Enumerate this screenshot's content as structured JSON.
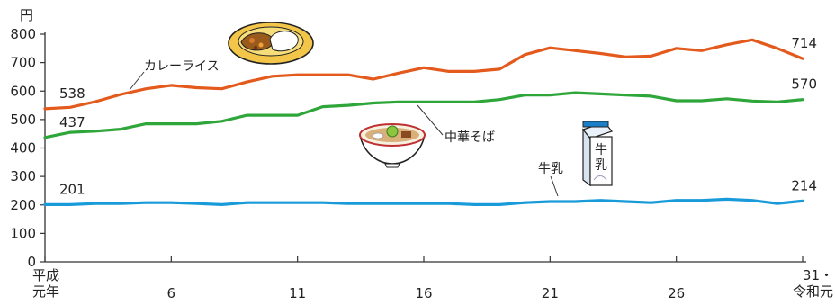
{
  "chart_data": {
    "type": "line",
    "ylabel": "円",
    "ylim": [
      0,
      800
    ],
    "yticks": [
      0,
      100,
      200,
      300,
      400,
      500,
      600,
      700,
      800
    ],
    "x": [
      1,
      2,
      3,
      4,
      5,
      6,
      7,
      8,
      9,
      10,
      11,
      12,
      13,
      14,
      15,
      16,
      17,
      18,
      19,
      20,
      21,
      22,
      23,
      24,
      25,
      26,
      27,
      28,
      29,
      30,
      31
    ],
    "xticks": [
      {
        "x": 1,
        "lines": [
          "平成",
          "元年"
        ]
      },
      {
        "x": 6,
        "lines": [
          "6"
        ]
      },
      {
        "x": 11,
        "lines": [
          "11"
        ]
      },
      {
        "x": 16,
        "lines": [
          "16"
        ]
      },
      {
        "x": 21,
        "lines": [
          "21"
        ]
      },
      {
        "x": 26,
        "lines": [
          "26"
        ]
      },
      {
        "x": 31,
        "lines": [
          "31・",
          "令和元"
        ]
      }
    ],
    "grid": false,
    "series": [
      {
        "name": "カレーライス",
        "color": "#e35a1c",
        "icon": "curry-icon",
        "start_label": "538",
        "end_label": "714",
        "values": [
          538,
          543,
          563,
          588,
          608,
          620,
          612,
          608,
          632,
          652,
          657,
          657,
          657,
          642,
          663,
          682,
          669,
          669,
          677,
          728,
          752,
          742,
          732,
          720,
          723,
          750,
          742,
          763,
          780,
          750,
          714
        ]
      },
      {
        "name": "中華そば",
        "color": "#2fa63a",
        "icon": "ramen-icon",
        "start_label": "437",
        "end_label": "570",
        "values": [
          437,
          455,
          459,
          466,
          485,
          485,
          485,
          494,
          515,
          515,
          515,
          545,
          550,
          558,
          562,
          562,
          562,
          562,
          570,
          586,
          586,
          594,
          590,
          586,
          582,
          566,
          566,
          573,
          565,
          562,
          570
        ]
      },
      {
        "name": "牛乳",
        "color": "#1a9bd9",
        "icon": "milk-icon",
        "start_label": "201",
        "end_label": "214",
        "values": [
          201,
          201,
          205,
          205,
          208,
          208,
          205,
          201,
          208,
          208,
          208,
          208,
          205,
          205,
          205,
          205,
          205,
          201,
          201,
          208,
          212,
          212,
          216,
          212,
          208,
          216,
          216,
          220,
          216,
          205,
          214
        ]
      }
    ]
  }
}
